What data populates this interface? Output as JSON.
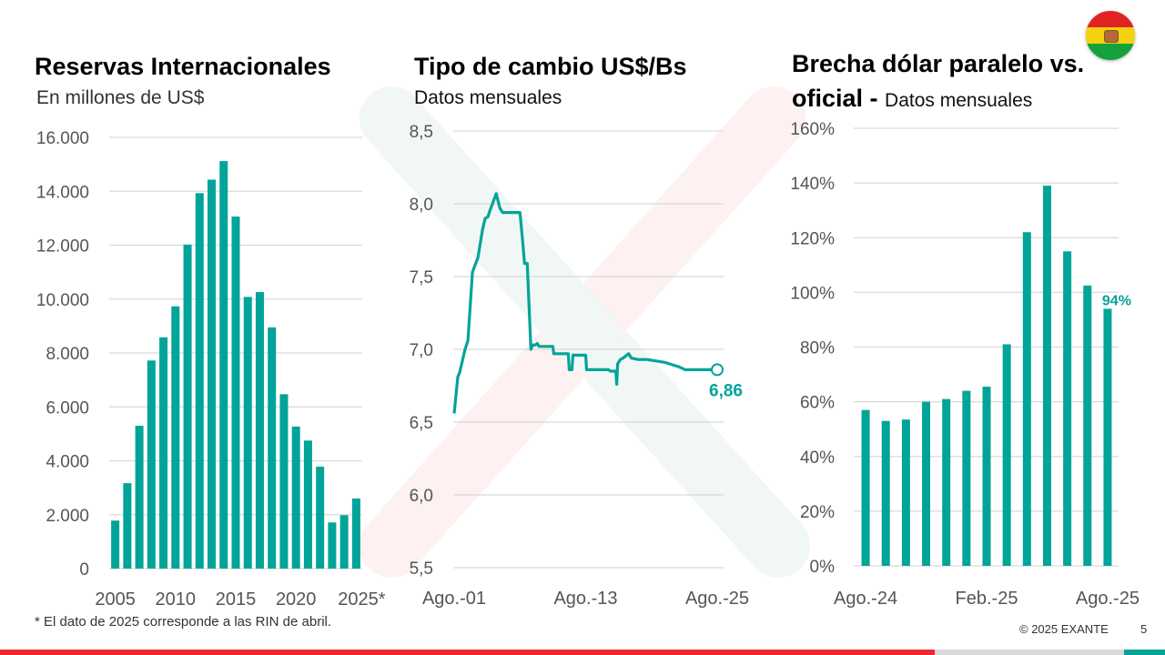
{
  "branding": {
    "copyright": "© 2025 EXANTE",
    "page_number": "5",
    "colors": {
      "accent": "#00A499",
      "red": "#F2262F",
      "gray": "#D9D9D9",
      "flag_red": "#E02424",
      "flag_yellow": "#F6D110",
      "flag_green": "#14A23A"
    },
    "flag_icon": "bolivia-flag-icon"
  },
  "footnote": "* El dato de 2025 corresponde a las RIN de abril.",
  "panels": {
    "reserves": {
      "title": "Reservas Internacionales",
      "subtitle": "En millones de US$"
    },
    "exchange": {
      "title": "Tipo de cambio US$/Bs",
      "subtitle": "Datos mensuales"
    },
    "gap": {
      "title_line1": "Brecha dólar paralelo vs.",
      "title_line2_bold": "oficial -",
      "title_line2_normal": "Datos mensuales"
    }
  },
  "chart_data": [
    {
      "type": "bar",
      "title": "Reservas Internacionales",
      "subtitle": "En millones de US$",
      "xlabel": "",
      "ylabel": "",
      "categories": [
        "2005",
        "2006",
        "2007",
        "2008",
        "2009",
        "2010",
        "2011",
        "2012",
        "2013",
        "2014",
        "2015",
        "2016",
        "2017",
        "2018",
        "2019",
        "2020",
        "2021",
        "2022",
        "2023",
        "2024",
        "2025*"
      ],
      "values": [
        1780,
        3170,
        5300,
        7720,
        8580,
        9730,
        12020,
        13930,
        14430,
        15120,
        13060,
        10080,
        10260,
        8950,
        6470,
        5270,
        4750,
        3780,
        1710,
        1980,
        2600
      ],
      "x_tick_labels": [
        "2005",
        "2010",
        "2015",
        "2020",
        "2025*"
      ],
      "y_tick_labels": [
        "0",
        "2.000",
        "4.000",
        "6.000",
        "8.000",
        "10.000",
        "12.000",
        "14.000",
        "16.000"
      ],
      "ylim": [
        0,
        16000
      ],
      "grid": true,
      "color": "#00A499"
    },
    {
      "type": "line",
      "title": "Tipo de cambio US$/Bs",
      "subtitle": "Datos mensuales",
      "xlabel": "",
      "ylabel": "",
      "x_unit": "months since Ago.-01",
      "series": [
        {
          "name": "Tipo de cambio",
          "points": [
            [
              0,
              6.56
            ],
            [
              4,
              6.81
            ],
            [
              6,
              6.84
            ],
            [
              12,
              7.0
            ],
            [
              15,
              7.06
            ],
            [
              20,
              7.53
            ],
            [
              26,
              7.63
            ],
            [
              31,
              7.82
            ],
            [
              34,
              7.9
            ],
            [
              37,
              7.91
            ],
            [
              39,
              7.95
            ],
            [
              42,
              8.0
            ],
            [
              46,
              8.07
            ],
            [
              50,
              7.97
            ],
            [
              53,
              7.94
            ],
            [
              72,
              7.94
            ],
            [
              75,
              7.74
            ],
            [
              77,
              7.59
            ],
            [
              80,
              7.59
            ],
            [
              84,
              7.0
            ],
            [
              86,
              7.03
            ],
            [
              89,
              7.03
            ],
            [
              91,
              7.04
            ],
            [
              93,
              7.02
            ],
            [
              108,
              7.02
            ],
            [
              109,
              6.97
            ],
            [
              125,
              6.97
            ],
            [
              126,
              6.86
            ],
            [
              129,
              6.86
            ],
            [
              130,
              6.96
            ],
            [
              144,
              6.96
            ],
            [
              145,
              6.86
            ],
            [
              169,
              6.86
            ],
            [
              171,
              6.85
            ],
            [
              177,
              6.85
            ],
            [
              178,
              6.76
            ],
            [
              179,
              6.9
            ],
            [
              182,
              6.93
            ],
            [
              185,
              6.94
            ],
            [
              191,
              6.97
            ],
            [
              194,
              6.94
            ],
            [
              201,
              6.93
            ],
            [
              211,
              6.93
            ],
            [
              221,
              6.92
            ],
            [
              231,
              6.91
            ],
            [
              241,
              6.89
            ],
            [
              246,
              6.88
            ],
            [
              253,
              6.86
            ],
            [
              288,
              6.86
            ]
          ]
        }
      ],
      "last_value_label": "6,86",
      "x_tick_labels": [
        "Ago.-01",
        "Ago.-13",
        "Ago.-25"
      ],
      "y_tick_labels": [
        "5,5",
        "6,0",
        "6,5",
        "7,0",
        "7,5",
        "8,0",
        "8,5"
      ],
      "xlim": [
        0,
        288
      ],
      "ylim": [
        5.5,
        8.5
      ],
      "grid": true,
      "color": "#00A499"
    },
    {
      "type": "bar",
      "title": "Brecha dólar paralelo vs. oficial",
      "subtitle": "Datos mensuales",
      "xlabel": "",
      "ylabel": "",
      "categories": [
        "Ago.-24",
        "Sep.-24",
        "Oct.-24",
        "Nov.-24",
        "Dic.-24",
        "Ene.-25",
        "Feb.-25",
        "Mar.-25",
        "Abr.-25",
        "May.-25",
        "Jun.-25",
        "Jul.-25",
        "Ago.-25"
      ],
      "values": [
        57,
        53,
        53.5,
        60,
        61,
        64,
        65.5,
        81,
        122,
        139,
        115,
        102.5,
        94
      ],
      "unit": "%",
      "last_value_label": "94%",
      "x_tick_labels": [
        "Ago.-24",
        "Feb.-25",
        "Ago.-25"
      ],
      "y_tick_labels": [
        "0%",
        "20%",
        "40%",
        "60%",
        "80%",
        "100%",
        "120%",
        "140%",
        "160%"
      ],
      "ylim": [
        0,
        160
      ],
      "grid": true,
      "color": "#00A499"
    }
  ]
}
